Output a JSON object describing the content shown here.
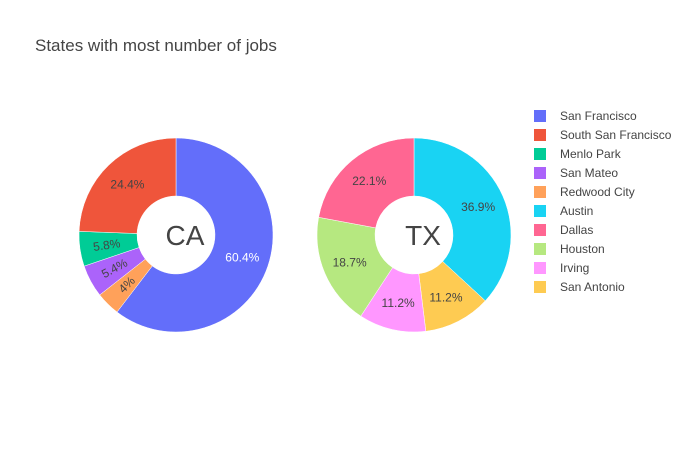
{
  "chart_data": {
    "type": "pie",
    "title": "States with most number of jobs",
    "hole": true,
    "pies": [
      {
        "name": "CA",
        "slices": [
          {
            "label": "San Francisco",
            "value": 60.4,
            "text": "60.4%"
          },
          {
            "label": "Redwood City",
            "value": 4.0,
            "text": "4%"
          },
          {
            "label": "San Mateo",
            "value": 5.4,
            "text": "5.4%"
          },
          {
            "label": "Menlo Park",
            "value": 5.8,
            "text": "5.8%"
          },
          {
            "label": "South San Francisco",
            "value": 24.4,
            "text": "24.4%"
          }
        ]
      },
      {
        "name": "TX",
        "slices": [
          {
            "label": "Austin",
            "value": 36.9,
            "text": "36.9%"
          },
          {
            "label": "San Antonio",
            "value": 11.2,
            "text": "11.2%"
          },
          {
            "label": "Irving",
            "value": 11.2,
            "text": "11.2%"
          },
          {
            "label": "Houston",
            "value": 18.7,
            "text": "18.7%"
          },
          {
            "label": "Dallas",
            "value": 22.1,
            "text": "22.1%"
          }
        ]
      }
    ],
    "legend": [
      {
        "label": "San Francisco",
        "color": "#636efa"
      },
      {
        "label": "South San Francisco",
        "color": "#EF553B"
      },
      {
        "label": "Menlo Park",
        "color": "#00cc96"
      },
      {
        "label": "San Mateo",
        "color": "#ab63fa"
      },
      {
        "label": "Redwood City",
        "color": "#FFA15A"
      },
      {
        "label": "Austin",
        "color": "#19d3f3"
      },
      {
        "label": "Dallas",
        "color": "#FF6692"
      },
      {
        "label": "Houston",
        "color": "#B6E880"
      },
      {
        "label": "Irving",
        "color": "#FF97FF"
      },
      {
        "label": "San Antonio",
        "color": "#FECB52"
      }
    ],
    "legend_placement": "right",
    "label_colors": {
      "dark": "#444444",
      "light": "#ffffff"
    }
  }
}
